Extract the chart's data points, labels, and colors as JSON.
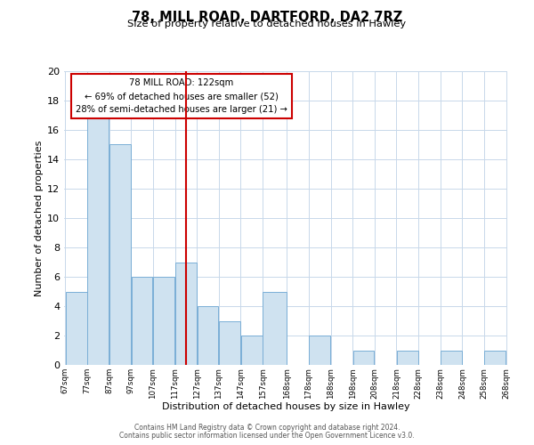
{
  "title_line1": "78, MILL ROAD, DARTFORD, DA2 7RZ",
  "title_line2": "Size of property relative to detached houses in Hawley",
  "xlabel": "Distribution of detached houses by size in Hawley",
  "ylabel": "Number of detached properties",
  "bar_color": "#cfe2f0",
  "bar_edgecolor": "#7aaed6",
  "vline_x": 122,
  "vline_color": "#cc0000",
  "annotation_line1": "78 MILL ROAD: 122sqm",
  "annotation_line2": "← 69% of detached houses are smaller (52)",
  "annotation_line3": "28% of semi-detached houses are larger (21) →",
  "annotation_box_edgecolor": "#cc0000",
  "bins_left": [
    67,
    77,
    87,
    97,
    107,
    117,
    127,
    137,
    147,
    157,
    168,
    178,
    188,
    198,
    208,
    218,
    228,
    238,
    248,
    258
  ],
  "bins_right": [
    77,
    87,
    97,
    107,
    117,
    127,
    137,
    147,
    157,
    168,
    178,
    188,
    198,
    208,
    218,
    228,
    238,
    248,
    258,
    268
  ],
  "counts": [
    5,
    17,
    15,
    6,
    6,
    7,
    4,
    3,
    2,
    5,
    0,
    2,
    0,
    1,
    0,
    1,
    0,
    1,
    0,
    1
  ],
  "ylim": [
    0,
    20
  ],
  "yticks": [
    0,
    2,
    4,
    6,
    8,
    10,
    12,
    14,
    16,
    18,
    20
  ],
  "xtick_labels": [
    "67sqm",
    "77sqm",
    "87sqm",
    "97sqm",
    "107sqm",
    "117sqm",
    "127sqm",
    "137sqm",
    "147sqm",
    "157sqm",
    "168sqm",
    "178sqm",
    "188sqm",
    "198sqm",
    "208sqm",
    "218sqm",
    "228sqm",
    "238sqm",
    "248sqm",
    "258sqm",
    "268sqm"
  ],
  "footer_line1": "Contains HM Land Registry data © Crown copyright and database right 2024.",
  "footer_line2": "Contains public sector information licensed under the Open Government Licence v3.0.",
  "background_color": "#ffffff",
  "grid_color": "#c8d8ea"
}
